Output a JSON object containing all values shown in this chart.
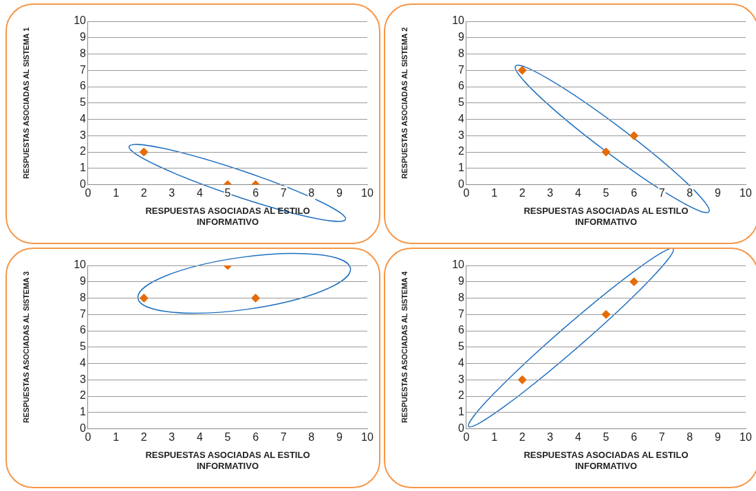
{
  "chart_data": [
    {
      "type": "scatter",
      "xlabel": "RESPUESTAS ASOCIADAS AL ESTILO INFORMATIVO",
      "ylabel": "RESPUESTAS ASOCIADAS AL SISTEMA 1",
      "x": [
        2,
        5,
        6
      ],
      "series": [
        {
          "color": "#e46c0a",
          "values": [
            2,
            0,
            0
          ]
        }
      ],
      "xlim": [
        0,
        10
      ],
      "ylim": [
        0,
        10
      ],
      "xticks": [
        0,
        1,
        2,
        3,
        4,
        5,
        6,
        7,
        8,
        9,
        10
      ],
      "yticks": [
        0,
        1,
        2,
        3,
        4,
        5,
        6,
        7,
        8,
        9,
        10
      ],
      "grid": "y",
      "legend": false,
      "marker": "diamond"
    },
    {
      "type": "scatter",
      "xlabel": "RESPUESTAS ASOCIADAS AL ESTILO INFORMATIVO",
      "ylabel": "RESPUESTAS ASOCIADAS AL SISTEMA 2",
      "x": [
        2,
        5,
        6
      ],
      "series": [
        {
          "color": "#e46c0a",
          "values": [
            7,
            2,
            3
          ]
        }
      ],
      "xlim": [
        0,
        10
      ],
      "ylim": [
        0,
        10
      ],
      "xticks": [
        0,
        1,
        2,
        3,
        4,
        5,
        6,
        7,
        8,
        9,
        10
      ],
      "yticks": [
        0,
        1,
        2,
        3,
        4,
        5,
        6,
        7,
        8,
        9,
        10
      ],
      "grid": "y",
      "legend": false,
      "marker": "diamond"
    },
    {
      "type": "scatter",
      "xlabel": "RESPUESTAS ASOCIADAS AL ESTILO INFORMATIVO",
      "ylabel": "RESPUESTAS ASOCIADAS AL SISTEMA 3",
      "x": [
        2,
        5,
        6
      ],
      "series": [
        {
          "color": "#e46c0a",
          "values": [
            8,
            10,
            8
          ]
        }
      ],
      "xlim": [
        0,
        10
      ],
      "ylim": [
        0,
        10
      ],
      "xticks": [
        0,
        1,
        2,
        3,
        4,
        5,
        6,
        7,
        8,
        9,
        10
      ],
      "yticks": [
        0,
        1,
        2,
        3,
        4,
        5,
        6,
        7,
        8,
        9,
        10
      ],
      "grid": "y",
      "legend": false,
      "marker": "diamond"
    },
    {
      "type": "scatter",
      "xlabel": "RESPUESTAS ASOCIADAS AL ESTILO INFORMATIVO",
      "ylabel": "RESPUESTAS ASOCIADAS AL SISTEMA 4",
      "x": [
        2,
        5,
        6
      ],
      "series": [
        {
          "color": "#e46c0a",
          "values": [
            3,
            7,
            9
          ]
        }
      ],
      "xlim": [
        0,
        10
      ],
      "ylim": [
        0,
        10
      ],
      "xticks": [
        0,
        1,
        2,
        3,
        4,
        5,
        6,
        7,
        8,
        9,
        10
      ],
      "yticks": [
        0,
        1,
        2,
        3,
        4,
        5,
        6,
        7,
        8,
        9,
        10
      ],
      "grid": "y",
      "legend": false,
      "marker": "diamond"
    }
  ]
}
